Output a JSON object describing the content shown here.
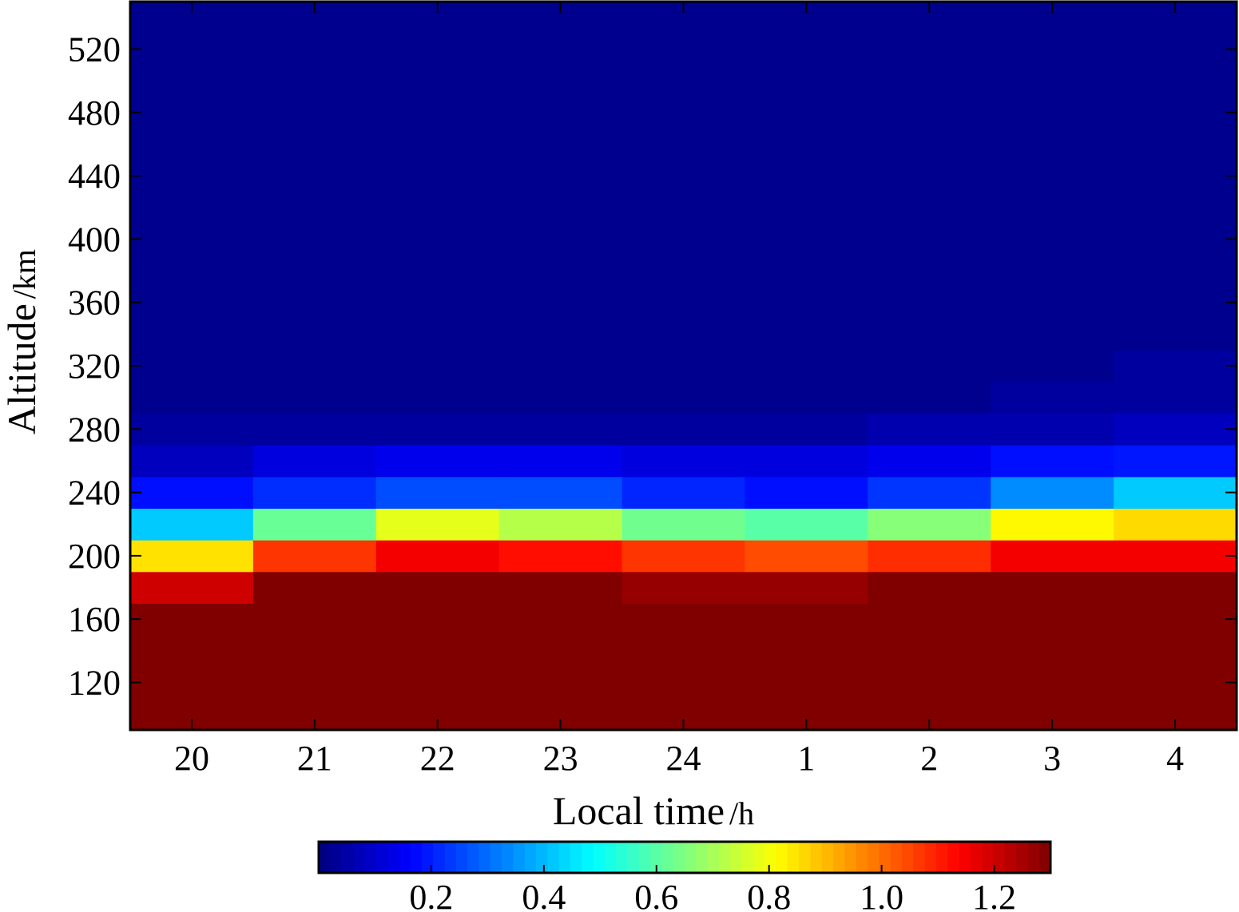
{
  "chart_data": {
    "type": "heatmap",
    "xlabel": "Local time",
    "xlabel_unit": "h",
    "ylabel": "Altitude",
    "ylabel_unit": "km",
    "x_categories": [
      "20",
      "21",
      "22",
      "23",
      "24",
      "1",
      "2",
      "3",
      "4"
    ],
    "y_ticks": [
      120,
      160,
      200,
      240,
      280,
      320,
      360,
      400,
      440,
      480,
      520
    ],
    "ylim": [
      90,
      550
    ],
    "altitude_bins": [
      [
        90,
        170
      ],
      [
        170,
        190
      ],
      [
        190,
        210
      ],
      [
        210,
        230
      ],
      [
        230,
        250
      ],
      [
        250,
        270
      ],
      [
        270,
        290
      ],
      [
        290,
        310
      ],
      [
        310,
        330
      ],
      [
        330,
        550
      ]
    ],
    "values": [
      [
        1.3,
        1.3,
        1.3,
        1.3,
        1.3,
        1.3,
        1.3,
        1.3,
        1.3
      ],
      [
        1.2,
        1.3,
        1.3,
        1.3,
        1.27,
        1.27,
        1.3,
        1.3,
        1.3
      ],
      [
        0.85,
        1.07,
        1.15,
        1.12,
        1.07,
        1.04,
        1.08,
        1.15,
        1.15
      ],
      [
        0.42,
        0.62,
        0.78,
        0.72,
        0.63,
        0.6,
        0.66,
        0.82,
        0.86
      ],
      [
        0.18,
        0.22,
        0.26,
        0.26,
        0.21,
        0.18,
        0.23,
        0.34,
        0.42
      ],
      [
        0.08,
        0.12,
        0.14,
        0.14,
        0.12,
        0.12,
        0.14,
        0.18,
        0.19
      ],
      [
        0.04,
        0.04,
        0.04,
        0.04,
        0.04,
        0.04,
        0.06,
        0.06,
        0.08
      ],
      [
        0.02,
        0.02,
        0.02,
        0.02,
        0.02,
        0.02,
        0.02,
        0.04,
        0.04
      ],
      [
        0.02,
        0.02,
        0.02,
        0.02,
        0.02,
        0.02,
        0.02,
        0.02,
        0.04
      ],
      [
        0.02,
        0.02,
        0.02,
        0.02,
        0.02,
        0.02,
        0.02,
        0.02,
        0.02
      ]
    ],
    "colorbar": {
      "min": 0,
      "max": 1.3,
      "colormap": "jet",
      "ticks": [
        0.2,
        0.4,
        0.6,
        0.8,
        1.0,
        1.2
      ],
      "tick_labels": [
        "0.2",
        "0.4",
        "0.6",
        "0.8",
        "1.0",
        "1.2"
      ],
      "placement": "bottom"
    }
  }
}
